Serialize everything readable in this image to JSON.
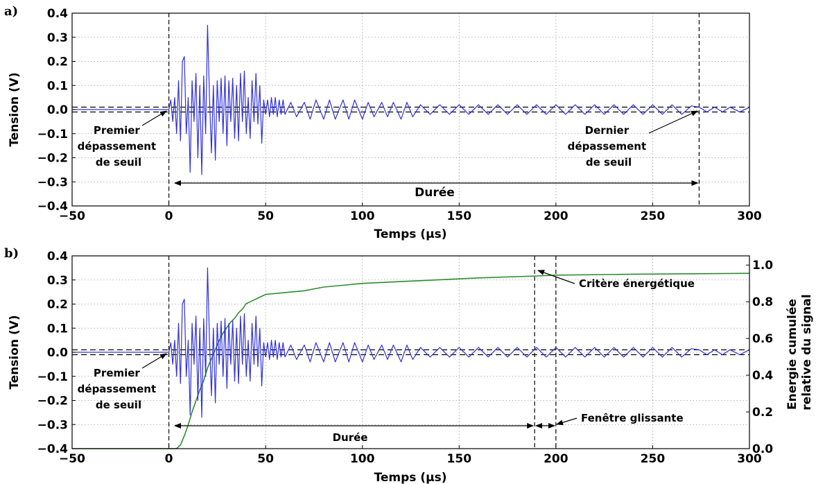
{
  "chart_data": [
    {
      "panel": "a)",
      "type": "line",
      "xlabel": "Temps (µs)",
      "ylabel": "Tension (V)",
      "xlim": [
        -50,
        300
      ],
      "ylim": [
        -0.4,
        0.4
      ],
      "x_ticks": [
        -50,
        0,
        50,
        100,
        150,
        200,
        250,
        300
      ],
      "x_tick_labels": [
        "−50",
        "0",
        "50",
        "100",
        "150",
        "200",
        "250",
        "300"
      ],
      "y_ticks": [
        -0.4,
        -0.3,
        -0.2,
        -0.1,
        0.0,
        0.1,
        0.2,
        0.3,
        0.4
      ],
      "y_tick_labels": [
        "−0.4",
        "−0.3",
        "−0.2",
        "−0.1",
        "0.0",
        "0.1",
        "0.2",
        "0.3",
        "0.4"
      ],
      "grid": true,
      "threshold_v": 0.01,
      "vlines_us": [
        0,
        274
      ],
      "signal": {
        "color": "#3030d8",
        "points": [
          [
            -50,
            0
          ],
          [
            0,
            0
          ],
          [
            1,
            0.04
          ],
          [
            2,
            -0.05
          ],
          [
            3,
            0.05
          ],
          [
            4,
            -0.1
          ],
          [
            5,
            0.12
          ],
          [
            6,
            -0.13
          ],
          [
            7,
            0.2
          ],
          [
            8,
            0.22
          ],
          [
            9,
            -0.1
          ],
          [
            10,
            0.05
          ],
          [
            11,
            -0.26
          ],
          [
            12,
            0.12
          ],
          [
            13,
            -0.05
          ],
          [
            14,
            0.15
          ],
          [
            15,
            -0.2
          ],
          [
            16,
            0.1
          ],
          [
            17,
            -0.27
          ],
          [
            18,
            0.14
          ],
          [
            19,
            -0.1
          ],
          [
            20,
            0.35
          ],
          [
            21,
            0.05
          ],
          [
            22,
            -0.18
          ],
          [
            23,
            0.1
          ],
          [
            24,
            -0.21
          ],
          [
            25,
            0.12
          ],
          [
            26,
            -0.05
          ],
          [
            27,
            0.13
          ],
          [
            28,
            -0.1
          ],
          [
            29,
            0.14
          ],
          [
            30,
            -0.15
          ],
          [
            31,
            0.12
          ],
          [
            32,
            -0.05
          ],
          [
            33,
            0.13
          ],
          [
            34,
            -0.12
          ],
          [
            35,
            0.1
          ],
          [
            36,
            -0.13
          ],
          [
            37,
            0.15
          ],
          [
            38,
            -0.05
          ],
          [
            39,
            0.16
          ],
          [
            40,
            -0.1
          ],
          [
            41,
            0.05
          ],
          [
            42,
            -0.12
          ],
          [
            43,
            0.12
          ],
          [
            44,
            -0.05
          ],
          [
            45,
            0.15
          ],
          [
            46,
            -0.06
          ],
          [
            47,
            0.1
          ],
          [
            48,
            -0.14
          ],
          [
            49,
            0.04
          ],
          [
            50,
            -0.02
          ],
          [
            51,
            0.04
          ],
          [
            52,
            -0.03
          ],
          [
            53,
            0.05
          ],
          [
            54,
            -0.02
          ],
          [
            55,
            0.05
          ],
          [
            56,
            -0.03
          ],
          [
            57,
            0.04
          ],
          [
            58,
            -0.02
          ],
          [
            59,
            0.04
          ],
          [
            60,
            -0.02
          ],
          [
            63,
            0.03
          ],
          [
            66,
            -0.03
          ],
          [
            70,
            0.03
          ],
          [
            73,
            -0.04
          ],
          [
            76,
            0.04
          ],
          [
            80,
            -0.04
          ],
          [
            83,
            0.04
          ],
          [
            86,
            -0.04
          ],
          [
            90,
            0.04
          ],
          [
            93,
            -0.04
          ],
          [
            96,
            0.04
          ],
          [
            100,
            -0.04
          ],
          [
            103,
            0.03
          ],
          [
            106,
            -0.03
          ],
          [
            110,
            0.03
          ],
          [
            113,
            -0.03
          ],
          [
            116,
            0.03
          ],
          [
            120,
            -0.04
          ],
          [
            123,
            0.03
          ],
          [
            126,
            -0.03
          ],
          [
            130,
            0.02
          ],
          [
            135,
            -0.02
          ],
          [
            140,
            0.02
          ],
          [
            145,
            -0.02
          ],
          [
            150,
            0.02
          ],
          [
            155,
            -0.02
          ],
          [
            160,
            0.02
          ],
          [
            165,
            -0.02
          ],
          [
            170,
            0.02
          ],
          [
            175,
            -0.02
          ],
          [
            180,
            0.02
          ],
          [
            185,
            -0.02
          ],
          [
            190,
            0.02
          ],
          [
            195,
            -0.02
          ],
          [
            200,
            0.02
          ],
          [
            205,
            -0.02
          ],
          [
            210,
            0.02
          ],
          [
            215,
            -0.02
          ],
          [
            220,
            0.02
          ],
          [
            225,
            -0.02
          ],
          [
            230,
            0.02
          ],
          [
            235,
            -0.02
          ],
          [
            240,
            0.02
          ],
          [
            245,
            -0.02
          ],
          [
            250,
            0.02
          ],
          [
            255,
            -0.02
          ],
          [
            260,
            0.02
          ],
          [
            265,
            -0.02
          ],
          [
            270,
            0.015
          ],
          [
            274,
            0.01
          ],
          [
            278,
            -0.01
          ],
          [
            282,
            0.01
          ],
          [
            286,
            -0.01
          ],
          [
            290,
            0.01
          ],
          [
            295,
            -0.01
          ],
          [
            300,
            0.01
          ]
        ]
      },
      "duration_arrow_us": [
        3,
        274
      ],
      "annotations": {
        "first_lines": [
          "Premier",
          "dépassement",
          "de seuil"
        ],
        "last_lines": [
          "Dernier",
          "dépassement",
          "de seuil"
        ],
        "duration": "Durée"
      }
    },
    {
      "panel": "b)",
      "type": "line",
      "xlabel": "Temps (µs)",
      "ylabel": "Tension (V)",
      "y2label_lines": [
        "Energie cumulée",
        "relative du signal"
      ],
      "xlim": [
        -50,
        300
      ],
      "ylim": [
        -0.4,
        0.4
      ],
      "y2lim": [
        0.0,
        1.05
      ],
      "x_ticks": [
        -50,
        0,
        50,
        100,
        150,
        200,
        250,
        300
      ],
      "x_tick_labels": [
        "−50",
        "0",
        "50",
        "100",
        "150",
        "200",
        "250",
        "300"
      ],
      "y_ticks": [
        -0.4,
        -0.3,
        -0.2,
        -0.1,
        0.0,
        0.1,
        0.2,
        0.3,
        0.4
      ],
      "y_tick_labels": [
        "−0.4",
        "−0.3",
        "−0.2",
        "−0.1",
        "0.0",
        "0.1",
        "0.2",
        "0.3",
        "0.4"
      ],
      "y2_ticks": [
        0.0,
        0.2,
        0.4,
        0.6,
        0.8,
        1.0
      ],
      "y2_tick_labels": [
        "0.0",
        "0.2",
        "0.4",
        "0.6",
        "0.8",
        "1.0"
      ],
      "grid": true,
      "threshold_v": 0.01,
      "vlines_us": [
        0,
        189,
        200
      ],
      "signal": {
        "color": "#3030d8",
        "points": [
          [
            -50,
            0
          ],
          [
            0,
            0
          ],
          [
            1,
            0.04
          ],
          [
            2,
            -0.05
          ],
          [
            3,
            0.05
          ],
          [
            4,
            -0.1
          ],
          [
            5,
            0.12
          ],
          [
            6,
            -0.13
          ],
          [
            7,
            0.2
          ],
          [
            8,
            0.22
          ],
          [
            9,
            -0.1
          ],
          [
            10,
            0.05
          ],
          [
            11,
            -0.26
          ],
          [
            12,
            0.12
          ],
          [
            13,
            -0.05
          ],
          [
            14,
            0.15
          ],
          [
            15,
            -0.2
          ],
          [
            16,
            0.1
          ],
          [
            17,
            -0.27
          ],
          [
            18,
            0.14
          ],
          [
            19,
            -0.1
          ],
          [
            20,
            0.35
          ],
          [
            21,
            0.05
          ],
          [
            22,
            -0.18
          ],
          [
            23,
            0.1
          ],
          [
            24,
            -0.21
          ],
          [
            25,
            0.12
          ],
          [
            26,
            -0.05
          ],
          [
            27,
            0.13
          ],
          [
            28,
            -0.1
          ],
          [
            29,
            0.14
          ],
          [
            30,
            -0.15
          ],
          [
            31,
            0.12
          ],
          [
            32,
            -0.05
          ],
          [
            33,
            0.13
          ],
          [
            34,
            -0.12
          ],
          [
            35,
            0.1
          ],
          [
            36,
            -0.13
          ],
          [
            37,
            0.15
          ],
          [
            38,
            -0.05
          ],
          [
            39,
            0.16
          ],
          [
            40,
            -0.1
          ],
          [
            41,
            0.05
          ],
          [
            42,
            -0.12
          ],
          [
            43,
            0.12
          ],
          [
            44,
            -0.05
          ],
          [
            45,
            0.15
          ],
          [
            46,
            -0.06
          ],
          [
            47,
            0.1
          ],
          [
            48,
            -0.14
          ],
          [
            49,
            0.04
          ],
          [
            50,
            -0.02
          ],
          [
            51,
            0.04
          ],
          [
            52,
            -0.03
          ],
          [
            53,
            0.05
          ],
          [
            54,
            -0.02
          ],
          [
            55,
            0.05
          ],
          [
            56,
            -0.03
          ],
          [
            57,
            0.04
          ],
          [
            58,
            -0.02
          ],
          [
            59,
            0.04
          ],
          [
            60,
            -0.02
          ],
          [
            63,
            0.03
          ],
          [
            66,
            -0.03
          ],
          [
            70,
            0.03
          ],
          [
            73,
            -0.04
          ],
          [
            76,
            0.04
          ],
          [
            80,
            -0.04
          ],
          [
            83,
            0.04
          ],
          [
            86,
            -0.04
          ],
          [
            90,
            0.04
          ],
          [
            93,
            -0.04
          ],
          [
            96,
            0.04
          ],
          [
            100,
            -0.04
          ],
          [
            103,
            0.03
          ],
          [
            106,
            -0.03
          ],
          [
            110,
            0.03
          ],
          [
            113,
            -0.03
          ],
          [
            116,
            0.03
          ],
          [
            120,
            -0.04
          ],
          [
            123,
            0.03
          ],
          [
            126,
            -0.03
          ],
          [
            130,
            0.02
          ],
          [
            135,
            -0.02
          ],
          [
            140,
            0.02
          ],
          [
            145,
            -0.02
          ],
          [
            150,
            0.02
          ],
          [
            155,
            -0.02
          ],
          [
            160,
            0.02
          ],
          [
            165,
            -0.02
          ],
          [
            170,
            0.02
          ],
          [
            175,
            -0.02
          ],
          [
            180,
            0.02
          ],
          [
            185,
            -0.02
          ],
          [
            190,
            0.02
          ],
          [
            195,
            -0.02
          ],
          [
            200,
            0.02
          ],
          [
            205,
            -0.02
          ],
          [
            210,
            0.02
          ],
          [
            215,
            -0.02
          ],
          [
            220,
            0.02
          ],
          [
            225,
            -0.02
          ],
          [
            230,
            0.02
          ],
          [
            235,
            -0.02
          ],
          [
            240,
            0.02
          ],
          [
            245,
            -0.02
          ],
          [
            250,
            0.02
          ],
          [
            255,
            -0.02
          ],
          [
            260,
            0.02
          ],
          [
            265,
            -0.02
          ],
          [
            270,
            0.015
          ],
          [
            274,
            0.01
          ],
          [
            278,
            -0.01
          ],
          [
            282,
            0.01
          ],
          [
            286,
            -0.01
          ],
          [
            290,
            0.01
          ],
          [
            295,
            -0.01
          ],
          [
            300,
            0.01
          ]
        ]
      },
      "energy": {
        "color": "#2e8b2e",
        "points": [
          [
            -50,
            0
          ],
          [
            0,
            0
          ],
          [
            4,
            0
          ],
          [
            6,
            0.02
          ],
          [
            8,
            0.07
          ],
          [
            10,
            0.13
          ],
          [
            12,
            0.2
          ],
          [
            14,
            0.26
          ],
          [
            16,
            0.32
          ],
          [
            18,
            0.37
          ],
          [
            20,
            0.44
          ],
          [
            22,
            0.49
          ],
          [
            24,
            0.54
          ],
          [
            26,
            0.59
          ],
          [
            28,
            0.63
          ],
          [
            30,
            0.66
          ],
          [
            32,
            0.69
          ],
          [
            34,
            0.71
          ],
          [
            36,
            0.74
          ],
          [
            38,
            0.76
          ],
          [
            40,
            0.79
          ],
          [
            42,
            0.8
          ],
          [
            44,
            0.81
          ],
          [
            46,
            0.82
          ],
          [
            48,
            0.83
          ],
          [
            50,
            0.84
          ],
          [
            60,
            0.85
          ],
          [
            70,
            0.86
          ],
          [
            80,
            0.88
          ],
          [
            90,
            0.89
          ],
          [
            100,
            0.9
          ],
          [
            120,
            0.91
          ],
          [
            140,
            0.92
          ],
          [
            160,
            0.93
          ],
          [
            189,
            0.94
          ],
          [
            200,
            0.945
          ],
          [
            240,
            0.95
          ],
          [
            300,
            0.955
          ]
        ]
      },
      "duration_arrow_us": [
        3,
        189
      ],
      "window_arrow_us": [
        189,
        200
      ],
      "annotations": {
        "first_lines": [
          "Premier",
          "dépassement",
          "de seuil"
        ],
        "duration": "Durée",
        "energy_criterion": "Critère énergétique",
        "sliding_window": "Fenêtre glissante"
      }
    }
  ]
}
